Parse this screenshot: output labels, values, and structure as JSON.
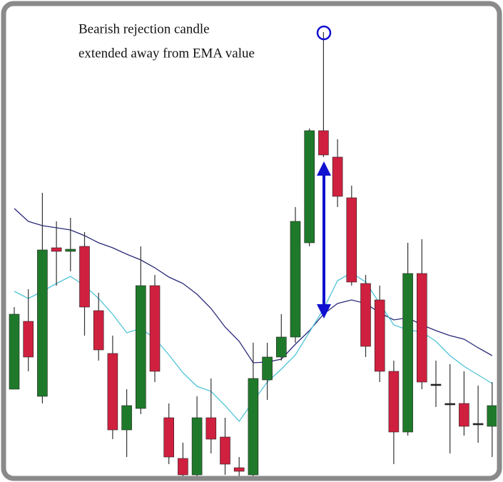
{
  "chart_data": {
    "type": "candlestick",
    "annotation": [
      "Bearish rejection candle",
      "extended away from EMA value"
    ],
    "categories": [
      null,
      null,
      null,
      null,
      null,
      null,
      null,
      null,
      null,
      null,
      null,
      null,
      null,
      null,
      null,
      null,
      null,
      null,
      null,
      null,
      null,
      null,
      null,
      null,
      null,
      null,
      null,
      null,
      null,
      null,
      null,
      null,
      null,
      null,
      null
    ],
    "open": [
      120,
      215,
      110,
      318,
      313,
      320,
      230,
      170,
      63,
      93,
      265,
      80,
      23,
      0,
      80,
      53,
      10,
      0,
      133,
      165,
      193,
      325,
      482,
      445,
      388,
      268,
      245,
      145,
      60,
      282,
      127,
      100,
      100,
      72,
      68
    ],
    "high": [
      235,
      260,
      395,
      355,
      360,
      340,
      255,
      195,
      120,
      320,
      280,
      100,
      45,
      110,
      135,
      80,
      25,
      185,
      185,
      225,
      375,
      485,
      620,
      470,
      405,
      280,
      265,
      160,
      325,
      330,
      160,
      155,
      145,
      125,
      130
    ],
    "low": [
      120,
      145,
      100,
      265,
      285,
      195,
      160,
      50,
      25,
      85,
      130,
      15,
      -5,
      -5,
      30,
      0,
      -3,
      -3,
      105,
      160,
      185,
      320,
      445,
      375,
      265,
      165,
      130,
      15,
      55,
      120,
      95,
      30,
      55,
      45,
      25
    ],
    "close": [
      225,
      165,
      315,
      313,
      316,
      235,
      175,
      63,
      97,
      265,
      145,
      25,
      0,
      80,
      50,
      15,
      5,
      135,
      165,
      193,
      355,
      482,
      448,
      390,
      270,
      180,
      145,
      60,
      282,
      130,
      127,
      100,
      68,
      72,
      97
    ],
    "up_color": "#1e7a2a",
    "down_color": "#d0203f",
    "lines": [
      {
        "color": "#2a2a78",
        "values": [
          373,
          355,
          349,
          346,
          343,
          335,
          325,
          318,
          309,
          301,
          290,
          277,
          268,
          253,
          233,
          207,
          187,
          157,
          158,
          162,
          183,
          202,
          225,
          240,
          245,
          240,
          227,
          217,
          220,
          210,
          202,
          195,
          190,
          178,
          167
        ]
      },
      {
        "color": "#4fc3d6",
        "values": [
          257,
          247,
          257,
          268,
          278,
          265,
          247,
          225,
          199,
          205,
          191,
          168,
          143,
          124,
          117,
          97,
          75,
          103,
          130,
          148,
          168,
          200,
          232,
          272,
          283,
          270,
          240,
          210,
          203,
          200,
          187,
          167,
          152,
          140,
          128
        ]
      }
    ],
    "ylim": [
      -10,
      645
    ]
  }
}
